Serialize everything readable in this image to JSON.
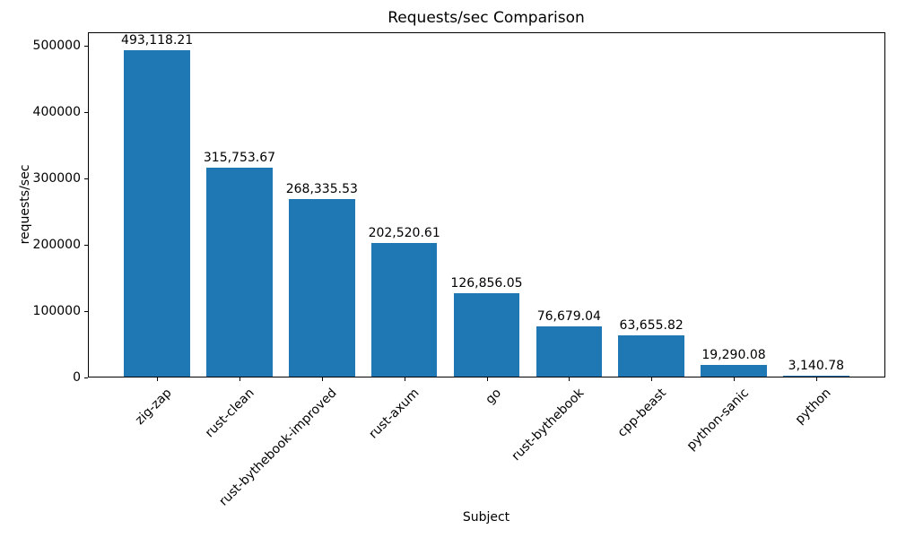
{
  "chart_data": {
    "type": "bar",
    "title": "Requests/sec Comparison",
    "xlabel": "Subject",
    "ylabel": "requests/sec",
    "categories": [
      "zig-zap",
      "rust-clean",
      "rust-bythebook-improved",
      "rust-axum",
      "go",
      "rust-bythebook",
      "cpp-beast",
      "python-sanic",
      "python"
    ],
    "values": [
      493118.21,
      315753.67,
      268335.53,
      202520.61,
      126856.05,
      76679.04,
      63655.82,
      19290.08,
      3140.78
    ],
    "value_labels": [
      "493,118.21",
      "315,753.67",
      "268,335.53",
      "202,520.61",
      "126,856.05",
      "76,679.04",
      "63,655.82",
      "19,290.08",
      "3,140.78"
    ],
    "yticks": [
      0,
      100000,
      200000,
      300000,
      400000,
      500000
    ],
    "ytick_labels": [
      "0",
      "100000",
      "200000",
      "300000",
      "400000",
      "500000"
    ],
    "ylim": [
      0,
      520270
    ],
    "xlim": [
      -0.84,
      8.84
    ],
    "bar_width_fraction": 0.8,
    "grid": "off",
    "legend": "none",
    "bar_color": "#1f77b4",
    "background_color": "#ffffff",
    "text_color": "#000000"
  }
}
